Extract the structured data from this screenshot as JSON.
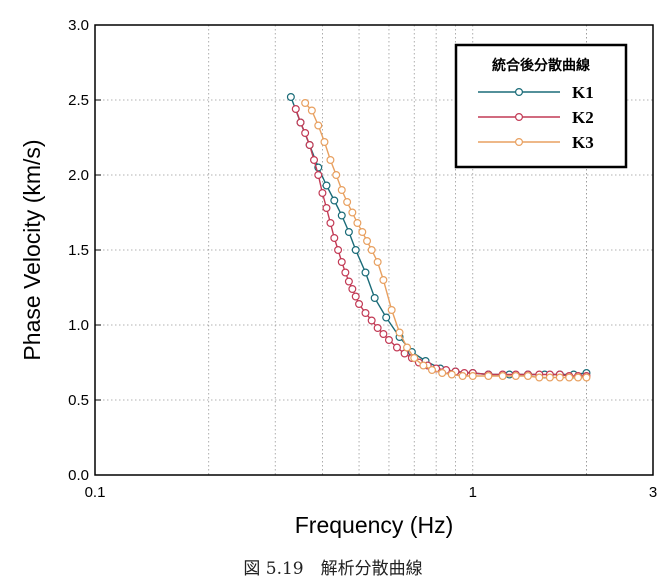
{
  "caption": "図 5.19　解析分散曲線",
  "colors": {
    "K1": "#1a6b78",
    "K2": "#c23a55",
    "K3": "#e8a060",
    "grid": "#999999",
    "frame": "#000000"
  },
  "chart_data": {
    "type": "line",
    "xlabel": "Frequency (Hz)",
    "ylabel": "Phase Velocity (km/s)",
    "xscale": "log",
    "xlim": [
      0.1,
      3
    ],
    "ylim": [
      0.0,
      3.0
    ],
    "xticks": [
      {
        "value": 0.1,
        "label": "0.1"
      },
      {
        "value": 1,
        "label": "1"
      },
      {
        "value": 3,
        "label": "3"
      }
    ],
    "yticks": [
      {
        "value": 0.0,
        "label": "0.0"
      },
      {
        "value": 0.5,
        "label": "0.5"
      },
      {
        "value": 1.0,
        "label": "1.0"
      },
      {
        "value": 1.5,
        "label": "1.5"
      },
      {
        "value": 2.0,
        "label": "2.0"
      },
      {
        "value": 2.5,
        "label": "2.5"
      },
      {
        "value": 3.0,
        "label": "3.0"
      }
    ],
    "grid": true,
    "legend": {
      "title": "統合後分散曲線",
      "position": "top-right"
    },
    "series": [
      {
        "name": "K1",
        "x": [
          0.33,
          0.35,
          0.37,
          0.39,
          0.41,
          0.43,
          0.45,
          0.47,
          0.49,
          0.52,
          0.55,
          0.59,
          0.64,
          0.69,
          0.75,
          0.82,
          0.9,
          1.0,
          1.1,
          1.25,
          1.4,
          1.55,
          1.7,
          1.85,
          2.0
        ],
        "y": [
          2.52,
          2.35,
          2.2,
          2.05,
          1.93,
          1.83,
          1.73,
          1.62,
          1.5,
          1.35,
          1.18,
          1.05,
          0.92,
          0.82,
          0.76,
          0.71,
          0.69,
          0.68,
          0.67,
          0.67,
          0.67,
          0.67,
          0.67,
          0.67,
          0.68
        ]
      },
      {
        "name": "K2",
        "x": [
          0.34,
          0.35,
          0.36,
          0.37,
          0.38,
          0.39,
          0.4,
          0.41,
          0.42,
          0.43,
          0.44,
          0.45,
          0.46,
          0.47,
          0.48,
          0.49,
          0.5,
          0.52,
          0.54,
          0.56,
          0.58,
          0.6,
          0.63,
          0.66,
          0.69,
          0.72,
          0.76,
          0.8,
          0.85,
          0.9,
          0.95,
          1.0,
          1.1,
          1.2,
          1.3,
          1.4,
          1.5,
          1.6,
          1.7,
          1.8,
          1.9,
          2.0
        ],
        "y": [
          2.44,
          2.35,
          2.28,
          2.2,
          2.1,
          2.0,
          1.88,
          1.78,
          1.68,
          1.58,
          1.5,
          1.42,
          1.35,
          1.29,
          1.24,
          1.19,
          1.14,
          1.08,
          1.03,
          0.98,
          0.94,
          0.9,
          0.85,
          0.81,
          0.78,
          0.75,
          0.73,
          0.71,
          0.7,
          0.69,
          0.68,
          0.68,
          0.67,
          0.67,
          0.67,
          0.67,
          0.67,
          0.67,
          0.67,
          0.66,
          0.66,
          0.66
        ]
      },
      {
        "name": "K3",
        "x": [
          0.36,
          0.375,
          0.39,
          0.405,
          0.42,
          0.435,
          0.45,
          0.465,
          0.48,
          0.495,
          0.51,
          0.525,
          0.54,
          0.56,
          0.58,
          0.61,
          0.64,
          0.67,
          0.7,
          0.74,
          0.78,
          0.83,
          0.88,
          0.94,
          1.0,
          1.1,
          1.2,
          1.3,
          1.4,
          1.5,
          1.6,
          1.7,
          1.8,
          1.9,
          2.0
        ],
        "y": [
          2.48,
          2.43,
          2.33,
          2.22,
          2.1,
          2.0,
          1.9,
          1.82,
          1.75,
          1.68,
          1.62,
          1.56,
          1.5,
          1.42,
          1.3,
          1.1,
          0.95,
          0.85,
          0.78,
          0.73,
          0.7,
          0.68,
          0.67,
          0.66,
          0.66,
          0.66,
          0.66,
          0.66,
          0.66,
          0.65,
          0.65,
          0.65,
          0.65,
          0.65,
          0.65
        ]
      }
    ]
  }
}
